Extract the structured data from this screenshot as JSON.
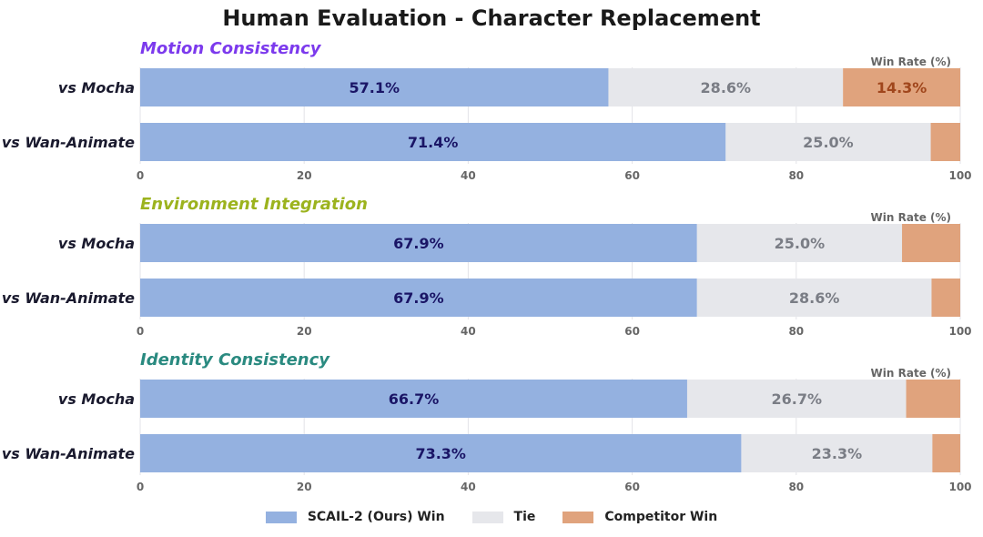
{
  "title": "Human Evaluation - Character Replacement",
  "axis_label": "Win Rate (%)",
  "colors": {
    "win": "#94b1e0",
    "tie": "#e6e7eb",
    "loss": "#e0a37d",
    "win_text": "#1a1566",
    "tie_text": "#7a7d85",
    "loss_text": "#a0461c",
    "grid": "#e3e3e8"
  },
  "legend": [
    {
      "label": "SCAIL-2 (Ours) Win",
      "color": "#94b1e0"
    },
    {
      "label": "Tie",
      "color": "#e6e7eb"
    },
    {
      "label": "Competitor Win",
      "color": "#e0a37d"
    }
  ],
  "chart_data": [
    {
      "type": "bar",
      "orientation": "horizontal",
      "stacked": true,
      "title": "Motion Consistency",
      "title_color": "#7c3aed",
      "categories": [
        "vs Mocha",
        "vs Wan-Animate"
      ],
      "series": [
        {
          "name": "SCAIL-2 (Ours) Win",
          "values": [
            57.1,
            71.4
          ]
        },
        {
          "name": "Tie",
          "values": [
            28.6,
            25.0
          ]
        },
        {
          "name": "Competitor Win",
          "values": [
            14.3,
            3.6
          ]
        }
      ],
      "data_labels": [
        [
          "57.1%",
          "28.6%",
          "14.3%"
        ],
        [
          "71.4%",
          "25.0%",
          ""
        ]
      ],
      "xlim": [
        0,
        100
      ],
      "xticks": [
        "0",
        "20",
        "40",
        "60",
        "80",
        "100"
      ],
      "xlabel": "Win Rate (%)",
      "grid": true
    },
    {
      "type": "bar",
      "orientation": "horizontal",
      "stacked": true,
      "title": "Environment Integration",
      "title_color": "#9cb31e",
      "categories": [
        "vs Mocha",
        "vs Wan-Animate"
      ],
      "series": [
        {
          "name": "SCAIL-2 (Ours) Win",
          "values": [
            67.9,
            67.9
          ]
        },
        {
          "name": "Tie",
          "values": [
            25.0,
            28.6
          ]
        },
        {
          "name": "Competitor Win",
          "values": [
            7.1,
            3.5
          ]
        }
      ],
      "data_labels": [
        [
          "67.9%",
          "25.0%",
          ""
        ],
        [
          "67.9%",
          "28.6%",
          ""
        ]
      ],
      "xlim": [
        0,
        100
      ],
      "xticks": [
        "0",
        "20",
        "40",
        "60",
        "80",
        "100"
      ],
      "xlabel": "Win Rate (%)",
      "grid": true
    },
    {
      "type": "bar",
      "orientation": "horizontal",
      "stacked": true,
      "title": "Identity Consistency",
      "title_color": "#2a8a80",
      "categories": [
        "vs Mocha",
        "vs Wan-Animate"
      ],
      "series": [
        {
          "name": "SCAIL-2 (Ours) Win",
          "values": [
            66.7,
            73.3
          ]
        },
        {
          "name": "Tie",
          "values": [
            26.7,
            23.3
          ]
        },
        {
          "name": "Competitor Win",
          "values": [
            6.6,
            3.4
          ]
        }
      ],
      "data_labels": [
        [
          "66.7%",
          "26.7%",
          ""
        ],
        [
          "73.3%",
          "23.3%",
          ""
        ]
      ],
      "xlim": [
        0,
        100
      ],
      "xticks": [
        "0",
        "20",
        "40",
        "60",
        "80",
        "100"
      ],
      "xlabel": "Win Rate (%)",
      "grid": true
    }
  ]
}
